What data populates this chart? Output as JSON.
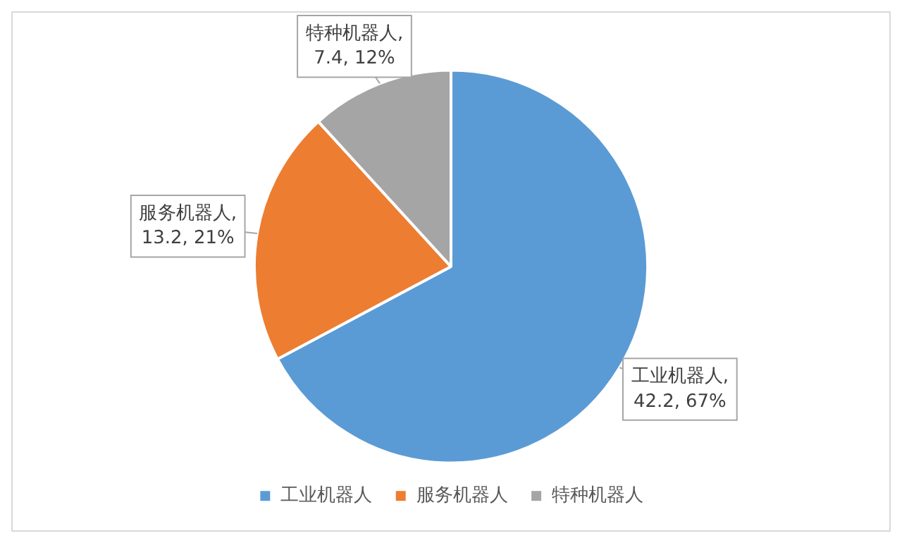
{
  "chart_data": {
    "type": "pie",
    "categories": [
      "工业机器人",
      "服务机器人",
      "特种机器人"
    ],
    "values": [
      42.2,
      13.2,
      7.4
    ],
    "colors": [
      "#5b9bd5",
      "#ed7d31",
      "#a5a5a5"
    ],
    "value_labels": [
      "工业机器人, 42.2, 67%",
      "服务机器人, 13.2, 21%",
      "特种机器人, 7.4, 12%"
    ],
    "legend": "bottom"
  }
}
